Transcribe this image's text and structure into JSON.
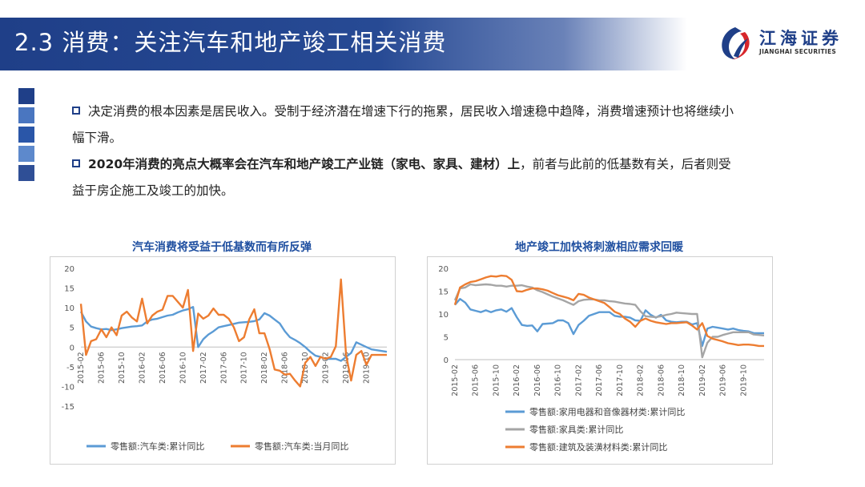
{
  "title": "2.3 消费：关注汽车和地产竣工相关消费",
  "logo": {
    "cn": "江海证券",
    "en": "JIANGHAI SECURITIES"
  },
  "colors": {
    "brand": "#1f3f88",
    "blue": "#5b9bd5",
    "orange": "#ed7d31",
    "gray": "#a5a5a5"
  },
  "bullets": [
    {
      "plain": "决定消费的根本因素是居民收入。受制于经济潜在增速下行的拖累，居民收入增速稳中趋降，消费增速预计也将继续小幅下滑。"
    },
    {
      "bold": "2020年消费的亮点大概率会在汽车和地产竣工产业链（家电、家具、建材）上",
      "rest": "，前者与此前的低基数有关，后者则受益于房企施工及竣工的加快。"
    }
  ],
  "chart_data": [
    {
      "type": "line",
      "title": "汽车消费将受益于低基数而有所反弹",
      "ylim": [
        -15,
        20
      ],
      "yticks": [
        -15,
        -10,
        -5,
        0,
        5,
        10,
        15,
        20
      ],
      "x_labels": [
        "2015-02",
        "2015-06",
        "2015-10",
        "2016-02",
        "2016-06",
        "2016-10",
        "2017-02",
        "2017-06",
        "2017-10",
        "2018-02",
        "2018-06",
        "2018-10",
        "2019-02",
        "2019-06",
        "2019-10"
      ],
      "series": [
        {
          "name": "零售额:汽车类:累计同比",
          "color": "#5b9bd5",
          "values": [
            9,
            6.5,
            5.2,
            4.8,
            4.5,
            4.6,
            4.3,
            4.5,
            4.8,
            5,
            5.2,
            5.3,
            5.5,
            6.5,
            7,
            7.2,
            7.6,
            8,
            8.2,
            8.8,
            9.3,
            9.6,
            10.2,
            0,
            2,
            3.2,
            4,
            5,
            5.3,
            5.6,
            5.9,
            6.2,
            6.3,
            6.4,
            6.6,
            7,
            8.6,
            8,
            7,
            6,
            4,
            2.5,
            1.8,
            1,
            0,
            -1.2,
            -2.2,
            -2.5,
            -3,
            -3,
            -3,
            -3.5,
            -2.5,
            -1.5,
            1.2,
            0.6,
            0,
            -0.6,
            -0.8,
            -1,
            -1.2
          ]
        },
        {
          "name": "零售额:汽车类:当月同比",
          "color": "#ed7d31",
          "values": [
            11,
            -2,
            1.5,
            2,
            4.5,
            2.5,
            5,
            3,
            8,
            9,
            7.5,
            6.5,
            12.3,
            6,
            8,
            9,
            9.5,
            13,
            13,
            11.5,
            10,
            14.5,
            -1,
            8.5,
            7.2,
            8,
            9.8,
            8.2,
            8.2,
            7.2,
            5,
            1.5,
            2.5,
            7,
            9.6,
            3.5,
            3.5,
            -0.5,
            -5.7,
            -6,
            -7,
            -6.8,
            -8.5,
            -10,
            -4,
            -2.5,
            -4.8,
            -2.5,
            -3,
            -2.5,
            0.2,
            17.2,
            -2,
            -8.5,
            -2,
            -1,
            -4.5,
            -2,
            -2,
            -2,
            -2
          ]
        }
      ]
    },
    {
      "type": "line",
      "title": "地产竣工加快将刺激相应需求回暖",
      "ylim": [
        0,
        20
      ],
      "yticks": [
        0,
        5,
        10,
        15,
        20
      ],
      "x_labels": [
        "2015-02",
        "2015-06",
        "2015-10",
        "2016-02",
        "2016-06",
        "2016-10",
        "2017-02",
        "2017-06",
        "2017-10",
        "2018-02",
        "2018-06",
        "2018-10",
        "2019-02",
        "2019-06",
        "2019-10"
      ],
      "series": [
        {
          "name": "零售额:家用电器和音像器材类:累计同比",
          "color": "#5b9bd5",
          "values": [
            12,
            13.3,
            12.5,
            11,
            10.7,
            10.4,
            10.8,
            10.4,
            10.8,
            11,
            10.5,
            11.3,
            9.3,
            7.6,
            7.4,
            7.5,
            6.2,
            7.8,
            7.9,
            8,
            8.6,
            8.6,
            8,
            5.6,
            7.6,
            8.5,
            9.6,
            10,
            10.4,
            10.4,
            10.4,
            9.6,
            9.4,
            9.4,
            9.2,
            8.6,
            8.5,
            10.8,
            9.8,
            9.2,
            9.8,
            8.6,
            8.3,
            8.2,
            8.3,
            8.3,
            7.7,
            8,
            3,
            6.8,
            7.2,
            7,
            6.8,
            6.6,
            6.8,
            6.5,
            6.3,
            6.2,
            5.8,
            5.8,
            5.8
          ]
        },
        {
          "name": "零售额:家具类:累计同比",
          "color": "#a5a5a5",
          "values": [
            13,
            15.6,
            15.8,
            16.5,
            16.3,
            16.4,
            16.5,
            16.4,
            16.2,
            16.2,
            16,
            16.2,
            16.2,
            16.3,
            16,
            15.8,
            15.2,
            14.8,
            14.3,
            13.8,
            13.4,
            13,
            12.5,
            12,
            12.8,
            13.1,
            13.2,
            13.2,
            13,
            13,
            12.8,
            12.7,
            12.5,
            12.3,
            12.2,
            12,
            10.6,
            9.5,
            9.4,
            9.3,
            9.5,
            9.8,
            10,
            10.3,
            10.2,
            10.1,
            10,
            10,
            0.5,
            3.7,
            5,
            5,
            5.4,
            5.7,
            6,
            6,
            6,
            6,
            5.5,
            5.4,
            5.3
          ]
        },
        {
          "name": "零售额:建筑及装潢材料类:累计同比",
          "color": "#ed7d31",
          "values": [
            12,
            15.8,
            16.5,
            17,
            17.2,
            17.6,
            18,
            18.3,
            18.2,
            18.4,
            18.3,
            17.5,
            15,
            14.9,
            15.3,
            15.6,
            15.6,
            15.4,
            15.1,
            14.6,
            14.1,
            13.8,
            13.5,
            13,
            14.4,
            14.2,
            13.6,
            13.2,
            12.8,
            12.4,
            11.5,
            10.5,
            10,
            9,
            8.3,
            7.2,
            8.5,
            9,
            8.5,
            8.2,
            8,
            7.8,
            8,
            8,
            8.1,
            8.2,
            7.5,
            6.6,
            8,
            5.2,
            4.6,
            4.3,
            4,
            3.6,
            3.4,
            3.2,
            3.3,
            3.3,
            3.2,
            3,
            3
          ]
        }
      ]
    }
  ]
}
